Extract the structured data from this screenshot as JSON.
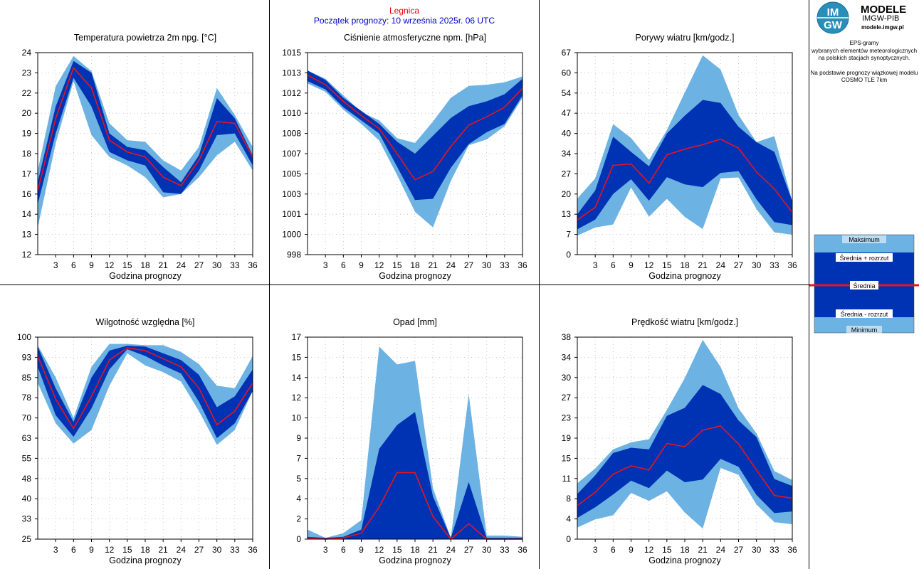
{
  "header": {
    "station": "Legnica",
    "forecast_start": "Początek prognozy: 10 września 2025r. 06 UTC"
  },
  "brand": {
    "logo_text_1": "IM",
    "logo_text_2": "GW",
    "title": "MODELE",
    "subtitle": "IMGW-PIB",
    "url": "modele.imgw.pl"
  },
  "description": {
    "line1": "EPS-gramy",
    "line2": "wybranych elementów meteorologicznych",
    "line3": "na polskich stacjach  synoptycznych.",
    "line4": "Na podstawie prognozy wiązkowej modelu",
    "line5": "COSMO TLE 7km"
  },
  "legend": {
    "max": "Maksimum",
    "upper": "Średnia + rozrzut",
    "mean": "Średnia",
    "lower": "Średnia - rozrzut",
    "min": "Minimum"
  },
  "colors": {
    "minmax_band": "#6cb2e3",
    "spread_band": "#0033b3",
    "mean_line": "#e8141e",
    "station_title": "#e8000b",
    "start_title": "#0000c8"
  },
  "chart_data": [
    {
      "type": "area",
      "title": "Temperatura powietrza 2m npg. [°C]",
      "xlabel": "Godzina prognozy",
      "x": [
        0,
        3,
        6,
        9,
        12,
        15,
        18,
        21,
        24,
        27,
        30,
        33,
        36
      ],
      "xticks": [
        "3",
        "6",
        "9",
        "12",
        "15",
        "18",
        "21",
        "24",
        "27",
        "30",
        "33",
        "36"
      ],
      "ylim": [
        12,
        24
      ],
      "yticks": [
        24,
        23,
        22,
        20,
        19,
        18,
        17,
        16,
        14,
        13,
        12
      ],
      "series": [
        {
          "name": "Maksimum",
          "values": [
            17.0,
            22.0,
            23.8,
            22.9,
            19.8,
            18.8,
            18.7,
            17.6,
            17.0,
            18.4,
            21.9,
            20.3,
            18.4
          ]
        },
        {
          "name": "Średnia + rozrzut",
          "values": [
            16.3,
            20.8,
            23.5,
            22.8,
            19.2,
            18.4,
            18.2,
            17.2,
            16.3,
            17.9,
            21.3,
            20.1,
            17.9
          ]
        },
        {
          "name": "Średnia",
          "values": [
            15.8,
            20.1,
            23.1,
            21.9,
            18.8,
            18.1,
            17.8,
            16.6,
            16.1,
            17.6,
            19.9,
            19.8,
            17.8
          ]
        },
        {
          "name": "Średnia - rozrzut",
          "values": [
            15.0,
            19.2,
            22.5,
            20.8,
            18.1,
            17.6,
            17.3,
            15.7,
            15.6,
            17.0,
            19.1,
            19.2,
            17.3
          ]
        },
        {
          "name": "Minimum",
          "values": [
            13.6,
            18.6,
            22.3,
            19.1,
            17.8,
            17.3,
            16.6,
            15.4,
            15.6,
            16.6,
            17.9,
            18.7,
            17.0
          ]
        }
      ]
    },
    {
      "type": "area",
      "title": "Ciśnienie atmosferyczne npm. [hPa]",
      "xlabel": "Godzina prognozy",
      "x": [
        0,
        3,
        6,
        9,
        12,
        15,
        18,
        21,
        24,
        27,
        30,
        33,
        36
      ],
      "xticks": [
        "3",
        "6",
        "9",
        "12",
        "15",
        "18",
        "21",
        "24",
        "27",
        "30",
        "33",
        "36"
      ],
      "ylim": [
        998,
        1015
      ],
      "yticks": [
        1015,
        1013,
        1012,
        1010,
        1008,
        1007,
        1005,
        1003,
        1001,
        1000,
        998
      ],
      "series": [
        {
          "name": "Maksimum",
          "values": [
            1013.5,
            1012.8,
            1011.4,
            1010.0,
            1009.3,
            1007.8,
            1007.4,
            1009.2,
            1011.2,
            1012.2,
            1012.3,
            1012.5,
            1013.0
          ]
        },
        {
          "name": "Średnia + rozrzut",
          "values": [
            1013.5,
            1012.7,
            1011.2,
            1010.1,
            1009.0,
            1007.5,
            1006.5,
            1008.0,
            1009.5,
            1010.5,
            1010.9,
            1011.5,
            1012.8
          ]
        },
        {
          "name": "Średnia",
          "values": [
            1013.1,
            1012.3,
            1010.9,
            1009.7,
            1008.6,
            1006.5,
            1004.3,
            1005.0,
            1007.1,
            1008.9,
            1009.6,
            1010.4,
            1012.0
          ]
        },
        {
          "name": "Średnia - rozrzut",
          "values": [
            1012.6,
            1011.9,
            1010.4,
            1009.3,
            1008.2,
            1005.4,
            1002.6,
            1002.7,
            1005.3,
            1007.3,
            1008.3,
            1009.0,
            1011.4
          ]
        },
        {
          "name": "Minimum",
          "values": [
            1012.4,
            1011.7,
            1010.2,
            1009.0,
            1007.6,
            1004.7,
            1001.6,
            1000.3,
            1004.2,
            1007.2,
            1007.7,
            1008.8,
            1011.2
          ]
        }
      ]
    },
    {
      "type": "area",
      "title": "Porywy wiatru [km/godz.]",
      "xlabel": "Godzina prognozy",
      "x": [
        0,
        3,
        6,
        9,
        12,
        15,
        18,
        21,
        24,
        27,
        30,
        33,
        36
      ],
      "xticks": [
        "3",
        "6",
        "9",
        "12",
        "15",
        "18",
        "21",
        "24",
        "27",
        "30",
        "33",
        "36"
      ],
      "ylim": [
        0,
        67
      ],
      "yticks": [
        67,
        60,
        54,
        47,
        40,
        34,
        27,
        20,
        13,
        7,
        0
      ],
      "series": [
        {
          "name": "Maksimum",
          "values": [
            18.6,
            25.3,
            43.3,
            38.7,
            31.4,
            41.3,
            53.8,
            66.1,
            61.4,
            46.3,
            37.3,
            39.3,
            17.7
          ]
        },
        {
          "name": "Średnia + rozrzut",
          "values": [
            13.4,
            21.3,
            39.1,
            34.1,
            29.3,
            40.2,
            46.1,
            51.3,
            50.3,
            42.4,
            37.3,
            34.1,
            17.7
          ]
        },
        {
          "name": "Średnia",
          "values": [
            11.5,
            15.7,
            29.6,
            30.1,
            23.7,
            33.1,
            35.0,
            36.5,
            38.3,
            35.3,
            27.4,
            21.8,
            14.0
          ]
        },
        {
          "name": "Średnia - rozrzut",
          "values": [
            8.4,
            11.6,
            20.1,
            25.0,
            17.9,
            25.7,
            23.3,
            22.4,
            27.1,
            27.7,
            18.3,
            10.8,
            9.8
          ]
        },
        {
          "name": "Minimum",
          "values": [
            6.3,
            9.0,
            10.0,
            22.3,
            12.6,
            18.5,
            12.5,
            8.5,
            25.3,
            25.6,
            15.1,
            7.4,
            6.6
          ]
        }
      ]
    },
    {
      "type": "area",
      "title": "Wilgotność względna [%]",
      "xlabel": "Godzina prognozy",
      "x": [
        0,
        3,
        6,
        9,
        12,
        15,
        18,
        21,
        24,
        27,
        30,
        33,
        36
      ],
      "xticks": [
        "3",
        "6",
        "9",
        "12",
        "15",
        "18",
        "21",
        "24",
        "27",
        "30",
        "33",
        "36"
      ],
      "ylim": [
        25,
        100
      ],
      "yticks": [
        100,
        93,
        85,
        78,
        70,
        63,
        55,
        48,
        40,
        33,
        25
      ],
      "series": [
        {
          "name": "Maksimum",
          "values": [
            97.0,
            85.0,
            70.0,
            89.0,
            97.5,
            97.5,
            97.0,
            97.0,
            94.5,
            90.0,
            82.0,
            81.0,
            93.0
          ]
        },
        {
          "name": "Średnia + rozrzut",
          "values": [
            96.5,
            81.0,
            68.5,
            85.0,
            95.0,
            96.8,
            96.5,
            94.0,
            91.5,
            86.0,
            74.0,
            78.0,
            88.0
          ]
        },
        {
          "name": "Średnia",
          "values": [
            93.0,
            77.0,
            66.0,
            78.0,
            91.5,
            96.0,
            95.0,
            92.0,
            89.0,
            81.0,
            67.5,
            72.5,
            83.0
          ]
        },
        {
          "name": "Średnia - rozrzut",
          "values": [
            89.0,
            71.0,
            63.0,
            73.5,
            88.0,
            95.5,
            93.0,
            89.5,
            86.5,
            76.0,
            62.5,
            68.0,
            80.0
          ]
        },
        {
          "name": "Minimum",
          "values": [
            83.0,
            68.0,
            60.5,
            65.5,
            82.0,
            94.0,
            89.5,
            87.0,
            83.5,
            72.5,
            60.0,
            65.5,
            80.0
          ]
        }
      ]
    },
    {
      "type": "area",
      "title": "Opad [mm]",
      "xlabel": "Godzina prognozy",
      "x": [
        0,
        3,
        6,
        9,
        12,
        15,
        18,
        21,
        24,
        27,
        30,
        33,
        36
      ],
      "xticks": [
        "3",
        "6",
        "9",
        "12",
        "15",
        "18",
        "21",
        "24",
        "27",
        "30",
        "33",
        "36"
      ],
      "ylim": [
        0,
        17
      ],
      "yticks": [
        17,
        15,
        14,
        12,
        10,
        9,
        7,
        5,
        4,
        2,
        0
      ],
      "series": [
        {
          "name": "Maksimum",
          "values": [
            0.8,
            0.1,
            0.5,
            1.6,
            16.2,
            14.7,
            15.0,
            4.3,
            0.1,
            12.2,
            0.3,
            0.3,
            0.2
          ]
        },
        {
          "name": "Średnia + rozrzut",
          "values": [
            0.2,
            0.1,
            0.2,
            0.8,
            7.6,
            9.6,
            10.7,
            3.6,
            0.1,
            4.8,
            0.1,
            0.1,
            0.1
          ]
        },
        {
          "name": "Średnia",
          "values": [
            0.1,
            0.0,
            0.1,
            0.5,
            2.7,
            5.6,
            5.6,
            1.9,
            0.0,
            1.3,
            0.0,
            0.0,
            0.0
          ]
        },
        {
          "name": "Średnia - rozrzut",
          "values": [
            0.0,
            0.0,
            0.0,
            0.0,
            0.0,
            0.0,
            0.0,
            0.0,
            0.0,
            0.0,
            0.0,
            0.0,
            0.0
          ]
        },
        {
          "name": "Minimum",
          "values": [
            0.0,
            0.0,
            0.0,
            0.0,
            0.0,
            0.0,
            0.0,
            0.0,
            0.0,
            0.0,
            0.0,
            0.0,
            0.0
          ]
        }
      ]
    },
    {
      "type": "area",
      "title": "Prędkość wiatru [km/godz.]",
      "xlabel": "Godzina prognozy",
      "x": [
        0,
        3,
        6,
        9,
        12,
        15,
        18,
        21,
        24,
        27,
        30,
        33,
        36
      ],
      "xticks": [
        "3",
        "6",
        "9",
        "12",
        "15",
        "18",
        "21",
        "24",
        "27",
        "30",
        "33",
        "36"
      ],
      "ylim": [
        0,
        38
      ],
      "yticks": [
        38,
        34,
        30,
        27,
        23,
        19,
        15,
        11,
        8,
        4,
        0
      ],
      "series": [
        {
          "name": "Maksimum",
          "values": [
            10.5,
            13.3,
            16.9,
            18.2,
            18.8,
            24.3,
            30.3,
            37.5,
            32.4,
            24.6,
            19.9,
            12.8,
            11.1
          ]
        },
        {
          "name": "Średnia + rozrzut",
          "values": [
            8.5,
            12.0,
            16.2,
            17.2,
            16.9,
            23.2,
            24.7,
            29.0,
            27.3,
            22.3,
            19.2,
            11.3,
            10.0
          ]
        },
        {
          "name": "Średnia",
          "values": [
            6.3,
            8.8,
            12.2,
            13.8,
            13.0,
            18.0,
            17.4,
            20.5,
            21.3,
            17.9,
            13.0,
            8.2,
            7.7
          ]
        },
        {
          "name": "Średnia - rozrzut",
          "values": [
            4.0,
            6.0,
            8.4,
            11.0,
            9.6,
            12.9,
            10.7,
            11.2,
            15.1,
            13.6,
            8.3,
            4.9,
            5.2
          ]
        },
        {
          "name": "Minimum",
          "values": [
            2.2,
            3.7,
            4.5,
            8.7,
            7.2,
            9.0,
            5.0,
            2.0,
            13.4,
            12.1,
            6.5,
            3.2,
            2.8
          ]
        }
      ]
    }
  ]
}
